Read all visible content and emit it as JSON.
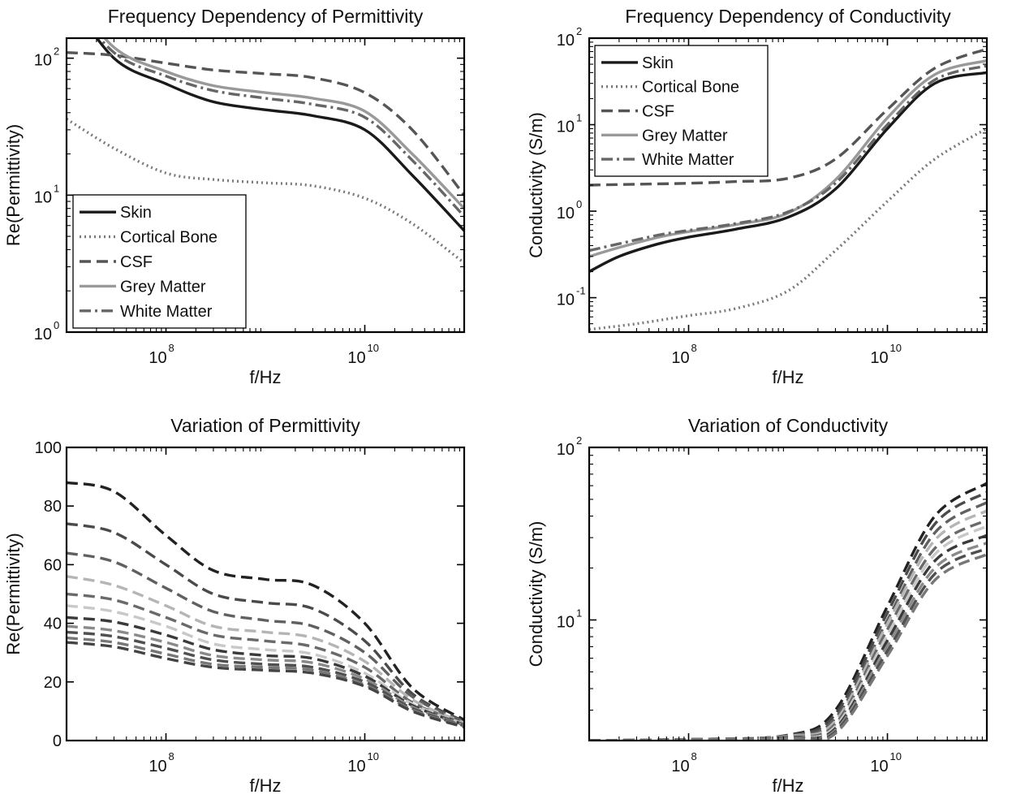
{
  "chart_data": [
    {
      "type": "line",
      "title": "Frequency Dependency of Permittivity",
      "xlabel": "f/Hz",
      "ylabel": "Re(Permittivity)",
      "xscale": "log",
      "yscale": "log",
      "xlim": [
        10000000,
        100000000000
      ],
      "ylim": [
        1,
        140
      ],
      "x_ticks": [
        {
          "value": 100000000,
          "base": "10",
          "exp": "8"
        },
        {
          "value": 10000000000,
          "base": "10",
          "exp": "10"
        }
      ],
      "y_ticks": [
        {
          "value": 1,
          "base": "10",
          "exp": "0"
        },
        {
          "value": 10,
          "base": "10",
          "exp": "1"
        },
        {
          "value": 100,
          "base": "10",
          "exp": "2"
        }
      ],
      "legend": {
        "position": "bottom-left"
      },
      "grid": false,
      "series": [
        {
          "name": "Skin",
          "style": "solid",
          "color": "#1a1a1a",
          "x": [
            10000000,
            30000000,
            100000000,
            300000000,
            1000000000,
            3000000000,
            10000000000,
            30000000000,
            100000000000
          ],
          "y": [
            300,
            100,
            65,
            48,
            42,
            38,
            30,
            14,
            5.5
          ]
        },
        {
          "name": "Cortical Bone",
          "style": "dotted",
          "color": "#7a7a7a",
          "x": [
            10000000,
            30000000,
            100000000,
            300000000,
            1000000000,
            3000000000,
            10000000000,
            30000000000,
            100000000000
          ],
          "y": [
            36,
            22,
            14.5,
            13,
            12.3,
            11.7,
            9.5,
            6.2,
            3.2
          ]
        },
        {
          "name": "CSF",
          "style": "dashed",
          "color": "#555555",
          "x": [
            10000000,
            30000000,
            100000000,
            300000000,
            1000000000,
            3000000000,
            10000000000,
            30000000000,
            100000000000
          ],
          "y": [
            110,
            105,
            92,
            82,
            77,
            72,
            56,
            30,
            10
          ]
        },
        {
          "name": "Grey Matter",
          "style": "solid",
          "color": "#999999",
          "x": [
            10000000,
            30000000,
            100000000,
            300000000,
            1000000000,
            3000000000,
            10000000000,
            30000000000,
            100000000000
          ],
          "y": [
            330,
            120,
            80,
            63,
            56,
            51,
            41,
            20,
            8
          ]
        },
        {
          "name": "White Matter",
          "style": "dashdot",
          "color": "#666666",
          "x": [
            10000000,
            30000000,
            100000000,
            300000000,
            1000000000,
            3000000000,
            10000000000,
            30000000000,
            100000000000
          ],
          "y": [
            290,
            110,
            74,
            58,
            51,
            46,
            37,
            18,
            7
          ]
        }
      ]
    },
    {
      "type": "line",
      "title": "Frequency Dependency of Conductivity",
      "xlabel": "f/Hz",
      "ylabel": "Conductivity (S/m)",
      "xscale": "log",
      "yscale": "log",
      "xlim": [
        10000000,
        100000000000
      ],
      "ylim": [
        0.04,
        100
      ],
      "x_ticks": [
        {
          "value": 100000000,
          "base": "10",
          "exp": "8"
        },
        {
          "value": 10000000000,
          "base": "10",
          "exp": "10"
        }
      ],
      "y_ticks": [
        {
          "value": 0.1,
          "base": "10",
          "exp": "-1"
        },
        {
          "value": 1,
          "base": "10",
          "exp": "0"
        },
        {
          "value": 10,
          "base": "10",
          "exp": "1"
        },
        {
          "value": 100,
          "base": "10",
          "exp": "2"
        }
      ],
      "legend": {
        "position": "top-left"
      },
      "grid": false,
      "series": [
        {
          "name": "Skin",
          "style": "solid",
          "color": "#1a1a1a",
          "x": [
            10000000,
            20000000,
            50000000,
            100000000,
            300000000,
            1000000000,
            3000000000,
            10000000000,
            30000000000,
            100000000000
          ],
          "y": [
            0.2,
            0.3,
            0.42,
            0.5,
            0.62,
            0.85,
            1.8,
            9,
            30,
            40
          ]
        },
        {
          "name": "Cortical Bone",
          "style": "dotted",
          "color": "#7a7a7a",
          "x": [
            10000000,
            30000000,
            100000000,
            300000000,
            1000000000,
            3000000000,
            10000000000,
            30000000000,
            100000000000
          ],
          "y": [
            0.043,
            0.05,
            0.062,
            0.075,
            0.12,
            0.35,
            1.3,
            4,
            9
          ]
        },
        {
          "name": "CSF",
          "style": "dashed",
          "color": "#555555",
          "x": [
            10000000,
            30000000,
            100000000,
            300000000,
            1000000000,
            3000000000,
            10000000000,
            30000000000,
            100000000000
          ],
          "y": [
            2,
            2.05,
            2.1,
            2.2,
            2.4,
            4,
            15,
            45,
            75
          ]
        },
        {
          "name": "Grey Matter",
          "style": "solid",
          "color": "#999999",
          "x": [
            10000000,
            20000000,
            50000000,
            100000000,
            300000000,
            1000000000,
            3000000000,
            10000000000,
            30000000000,
            100000000000
          ],
          "y": [
            0.3,
            0.38,
            0.5,
            0.58,
            0.7,
            0.95,
            2.3,
            12,
            38,
            55
          ]
        },
        {
          "name": "White Matter",
          "style": "dashdot",
          "color": "#666666",
          "x": [
            10000000,
            20000000,
            50000000,
            100000000,
            300000000,
            1000000000,
            3000000000,
            10000000000,
            30000000000,
            100000000000
          ],
          "y": [
            0.35,
            0.42,
            0.53,
            0.6,
            0.72,
            0.98,
            2.1,
            10,
            33,
            48
          ]
        }
      ]
    },
    {
      "type": "line",
      "title": "Variation of Permittivity",
      "xlabel": "f/Hz",
      "ylabel": "Re(Permittivity)",
      "xscale": "log",
      "yscale": "linear",
      "xlim": [
        10000000,
        100000000000
      ],
      "ylim": [
        0,
        100
      ],
      "x_ticks": [
        {
          "value": 100000000,
          "base": "10",
          "exp": "8"
        },
        {
          "value": 10000000000,
          "base": "10",
          "exp": "10"
        }
      ],
      "y_ticks": [
        {
          "value": 0,
          "label": "0"
        },
        {
          "value": 20,
          "label": "20"
        },
        {
          "value": 40,
          "label": "40"
        },
        {
          "value": 60,
          "label": "60"
        },
        {
          "value": 80,
          "label": "80"
        },
        {
          "value": 100,
          "label": "100"
        }
      ],
      "legend": null,
      "grid": false,
      "x": [
        10000000,
        30000000,
        100000000,
        300000000,
        1000000000,
        3000000000,
        10000000000,
        30000000000,
        100000000000
      ],
      "series": [
        {
          "style": "dashed",
          "color": "#222222",
          "y": [
            88,
            85,
            70,
            58,
            55,
            53,
            40,
            18,
            7
          ]
        },
        {
          "style": "dashed",
          "color": "#4a4a4a",
          "y": [
            74,
            71,
            60,
            50,
            47,
            45,
            34,
            16,
            6.5
          ]
        },
        {
          "style": "dashed",
          "color": "#606060",
          "y": [
            64,
            61,
            52,
            44,
            41,
            39,
            30,
            15,
            6.3
          ]
        },
        {
          "style": "dashed",
          "color": "#b5b5b5",
          "y": [
            56,
            53,
            46,
            39,
            37,
            35,
            27,
            14,
            6
          ]
        },
        {
          "style": "dashed",
          "color": "#6a6a6a",
          "y": [
            50,
            48,
            42,
            36,
            34,
            32,
            25,
            13,
            5.8
          ]
        },
        {
          "style": "dashed",
          "color": "#c8c8c8",
          "y": [
            46,
            44,
            39,
            33,
            31,
            29.5,
            23,
            12.5,
            5.6
          ]
        },
        {
          "style": "dashed",
          "color": "#3a3a3a",
          "y": [
            42,
            40.5,
            36,
            31,
            29,
            28,
            22,
            12,
            5.4
          ]
        },
        {
          "style": "dashed",
          "color": "#8a8a8a",
          "y": [
            39,
            37.5,
            33.5,
            29,
            27.5,
            26.5,
            21,
            11.5,
            5.2
          ]
        },
        {
          "style": "dashed",
          "color": "#505050",
          "y": [
            37,
            35.5,
            31.5,
            27.5,
            26,
            25,
            20,
            11,
            5
          ]
        },
        {
          "style": "dashed",
          "color": "#777777",
          "y": [
            35,
            33.5,
            29.5,
            26,
            25,
            24,
            19,
            10.5,
            4.8
          ]
        },
        {
          "style": "dashed",
          "color": "#444444",
          "y": [
            33.5,
            32,
            28,
            25,
            24,
            23,
            18.5,
            10,
            4.6
          ]
        }
      ]
    },
    {
      "type": "line",
      "title": "Variation of Conductivity",
      "xlabel": "f/Hz",
      "ylabel": "Conductivity (S/m)",
      "xscale": "log",
      "yscale": "log",
      "xlim": [
        10000000,
        100000000000
      ],
      "ylim": [
        2,
        100
      ],
      "x_ticks": [
        {
          "value": 100000000,
          "base": "10",
          "exp": "8"
        },
        {
          "value": 10000000000,
          "base": "10",
          "exp": "10"
        }
      ],
      "y_ticks": [
        {
          "value": 10,
          "base": "10",
          "exp": "1"
        },
        {
          "value": 100,
          "base": "10",
          "exp": "2"
        }
      ],
      "legend": null,
      "grid": false,
      "x": [
        10000000,
        100000000,
        1000000000,
        3000000000,
        10000000000,
        30000000000,
        100000000000
      ],
      "series": [
        {
          "style": "dashed",
          "color": "#222222",
          "y": [
            2,
            2.03,
            2.15,
            3,
            12,
            40,
            62
          ]
        },
        {
          "style": "dashed",
          "color": "#4a4a4a",
          "y": [
            2,
            2.03,
            2.14,
            2.85,
            11,
            36,
            55
          ]
        },
        {
          "style": "dashed",
          "color": "#606060",
          "y": [
            2,
            2.03,
            2.13,
            2.7,
            10,
            32,
            48
          ]
        },
        {
          "style": "dashed",
          "color": "#b5b5b5",
          "y": [
            2,
            2.03,
            2.12,
            2.6,
            9.5,
            29,
            43
          ]
        },
        {
          "style": "dashed",
          "color": "#6a6a6a",
          "y": [
            2,
            2.03,
            2.11,
            2.5,
            8.8,
            26,
            38
          ]
        },
        {
          "style": "dashed",
          "color": "#c8c8c8",
          "y": [
            2,
            2.03,
            2.1,
            2.42,
            8.2,
            24,
            35
          ]
        },
        {
          "style": "dashed",
          "color": "#3a3a3a",
          "y": [
            2,
            2.03,
            2.09,
            2.35,
            7.6,
            22,
            31
          ]
        },
        {
          "style": "dashed",
          "color": "#8a8a8a",
          "y": [
            2,
            2.03,
            2.08,
            2.3,
            7.1,
            20,
            28
          ]
        },
        {
          "style": "dashed",
          "color": "#505050",
          "y": [
            2,
            2.03,
            2.07,
            2.25,
            6.6,
            18.5,
            26
          ]
        },
        {
          "style": "dashed",
          "color": "#777777",
          "y": [
            2,
            2.03,
            2.06,
            2.2,
            6.2,
            17,
            24
          ]
        }
      ]
    }
  ]
}
